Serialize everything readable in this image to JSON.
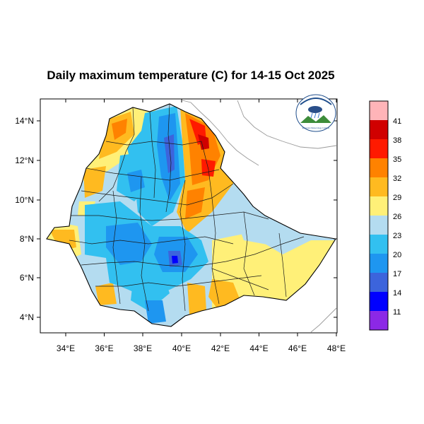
{
  "title": "Daily maximum temperature (C) for 14-15 Oct 2025",
  "x_ticks": [
    "34°E",
    "36°E",
    "38°E",
    "40°E",
    "42°E",
    "44°E",
    "46°E",
    "48°E"
  ],
  "y_ticks": [
    "14°N",
    "12°N",
    "10°N",
    "8°N",
    "6°N",
    "4°N"
  ],
  "colorbar": {
    "labels": [
      "41",
      "38",
      "35",
      "32",
      "29",
      "26",
      "23",
      "20",
      "17",
      "14",
      "11"
    ],
    "colors": [
      "#ffb4b8",
      "#d00000",
      "#ff1a00",
      "#ff8200",
      "#ffba20",
      "#fff078",
      "#b4dcf0",
      "#32c0f0",
      "#1e96f0",
      "#3c64dc",
      "#0000ff",
      "#8c28e6"
    ]
  },
  "logo": {
    "name": "Ethiopian Meteorology Institute",
    "caption": "Ethiopian Meteorology Institute"
  }
}
